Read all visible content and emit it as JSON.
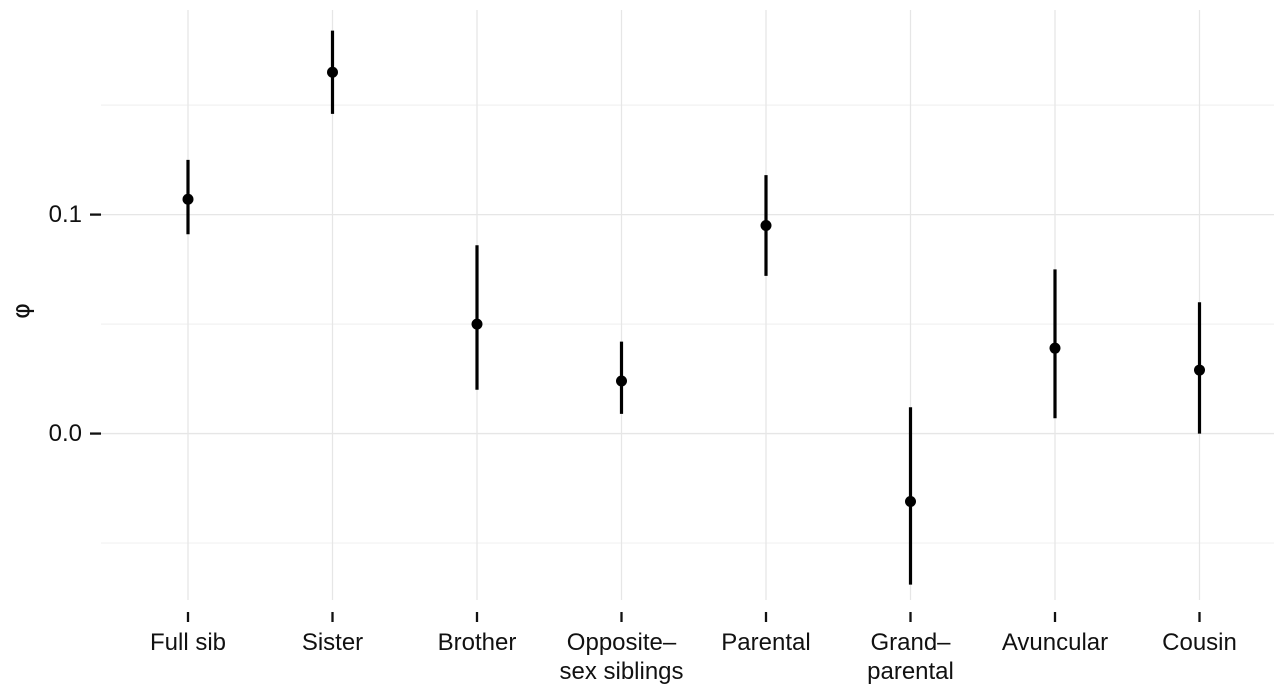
{
  "chart_data": {
    "type": "scatter",
    "ylabel": "φ",
    "xlabel": "",
    "title": "",
    "categories": [
      [
        "Full sib"
      ],
      [
        "Sister"
      ],
      [
        "Brother"
      ],
      [
        "Opposite–",
        "sex siblings"
      ],
      [
        "Parental"
      ],
      [
        "Grand–",
        "parental"
      ],
      [
        "Avuncular"
      ],
      [
        "Cousin"
      ]
    ],
    "series": [
      {
        "estimates": [
          0.107,
          0.165,
          0.05,
          0.024,
          0.095,
          -0.031,
          0.039,
          0.029
        ],
        "lower": [
          0.091,
          0.146,
          0.02,
          0.009,
          0.072,
          -0.069,
          0.007,
          0.0
        ],
        "upper": [
          0.125,
          0.184,
          0.086,
          0.042,
          0.118,
          0.012,
          0.075,
          0.06
        ]
      }
    ],
    "yticks": [
      0.0,
      0.1
    ],
    "ytick_labels": [
      "0.0",
      "0.1"
    ],
    "ylim": [
      -0.076,
      0.198
    ],
    "grid": true,
    "marker_color": "#000000",
    "grid_color": "#e6e6e6"
  }
}
